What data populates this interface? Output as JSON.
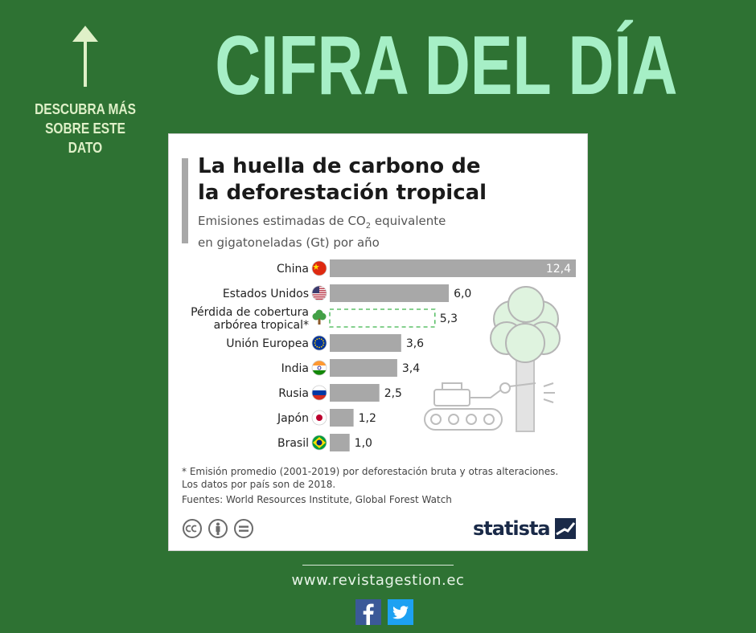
{
  "header": {
    "headline": "CIFRA DEL DÍA",
    "cta_line1": "DESCUBRA MÁS",
    "cta_line2": "SOBRE ESTE DATO"
  },
  "card": {
    "title_line1": "La huella de carbono de",
    "title_line2": "la deforestación tropical",
    "subtitle_line1_pre": "Emisiones estimadas de CO",
    "subtitle_sub": "2",
    "subtitle_line1_post": " equivalente",
    "subtitle_line2": "en gigatoneladas (Gt) por año",
    "footnote_line1": "* Emisión promedio (2001-2019) por deforestación bruta y otras alteraciones.",
    "footnote_line2": "Los datos por país son de 2018.",
    "sources": "Fuentes: World Resources Institute, Global Forest Watch",
    "brand": "statista"
  },
  "colors": {
    "background": "#2e7233",
    "headline": "#a6efc6",
    "bar": "#a8a8a8",
    "highlight_border": "#3cb44b"
  },
  "icons": [
    "arrow-up-icon",
    "flag-icons",
    "tree-icon",
    "bulldozer-icon",
    "cc-icon",
    "attribution-icon",
    "no-derivatives-icon",
    "statista-logo-icon",
    "facebook-icon",
    "twitter-icon"
  ],
  "chart_data": {
    "type": "bar",
    "orientation": "horizontal",
    "categories": [
      "China",
      "Estados Unidos",
      "Pérdida de cobertura arbórea tropical*",
      "Unión Europea",
      "India",
      "Rusia",
      "Japón",
      "Brasil"
    ],
    "category_lines": [
      [
        "China"
      ],
      [
        "Estados Unidos"
      ],
      [
        "Pérdida de cobertura",
        "arbórea tropical*"
      ],
      [
        "Unión Europea"
      ],
      [
        "India"
      ],
      [
        "Rusia"
      ],
      [
        "Japón"
      ],
      [
        "Brasil"
      ]
    ],
    "values": [
      12.4,
      6.0,
      5.3,
      3.6,
      3.4,
      2.5,
      1.2,
      1.0
    ],
    "value_labels": [
      "12,4",
      "6,0",
      "5,3",
      "3,6",
      "3,4",
      "2,5",
      "1,2",
      "1,0"
    ],
    "highlight": "Pérdida de cobertura arbórea tropical*",
    "title": "La huella de carbono de la deforestación tropical",
    "subtitle": "Emisiones estimadas de CO2 equivalente en gigatoneladas (Gt) por año",
    "xlim": [
      0,
      12.4
    ],
    "grid": false
  },
  "footer": {
    "website": "www.revistagestion.ec"
  }
}
